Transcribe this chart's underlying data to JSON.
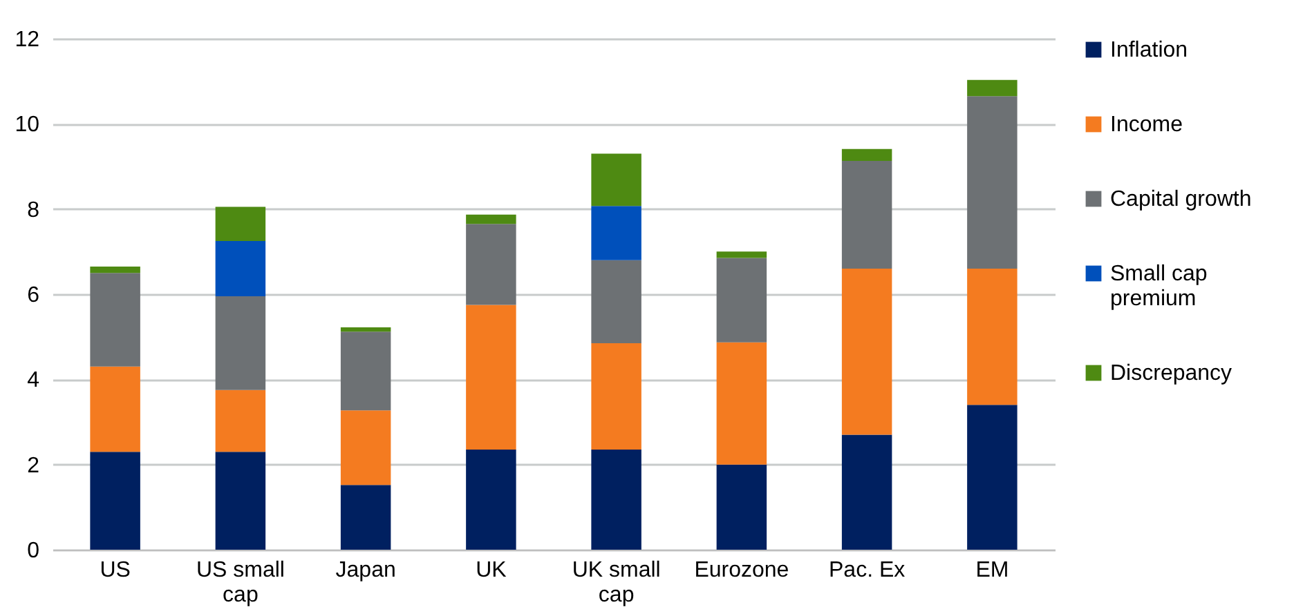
{
  "chart_data": {
    "type": "bar",
    "stacked": true,
    "categories": [
      "US",
      "US small cap",
      "Japan",
      "UK",
      "UK small cap",
      "Eurozone",
      "Pac. Ex",
      "EM"
    ],
    "series": [
      {
        "name": "Inflation",
        "color": "#002060",
        "values": [
          2.3,
          2.3,
          1.52,
          2.35,
          2.35,
          2.0,
          2.7,
          3.4
        ]
      },
      {
        "name": "Income",
        "color": "#f47b20",
        "values": [
          2.0,
          1.45,
          1.75,
          3.4,
          2.5,
          2.87,
          3.9,
          3.2
        ]
      },
      {
        "name": "Capital growth",
        "color": "#6d7174",
        "values": [
          2.2,
          2.2,
          1.85,
          1.9,
          1.95,
          1.98,
          2.53,
          4.05
        ]
      },
      {
        "name": "Small cap premium",
        "color": "#0050bb",
        "values": [
          null,
          1.3,
          null,
          null,
          1.27,
          null,
          null,
          null
        ]
      },
      {
        "name": "Discrepancy",
        "color": "#4e8a12",
        "values": [
          0.15,
          0.8,
          0.1,
          0.22,
          1.23,
          0.15,
          0.28,
          0.38
        ]
      }
    ],
    "ylim": [
      0,
      12
    ],
    "yticks": [
      0,
      2,
      4,
      6,
      8,
      10,
      12
    ],
    "grid": "y",
    "legend": "right"
  }
}
